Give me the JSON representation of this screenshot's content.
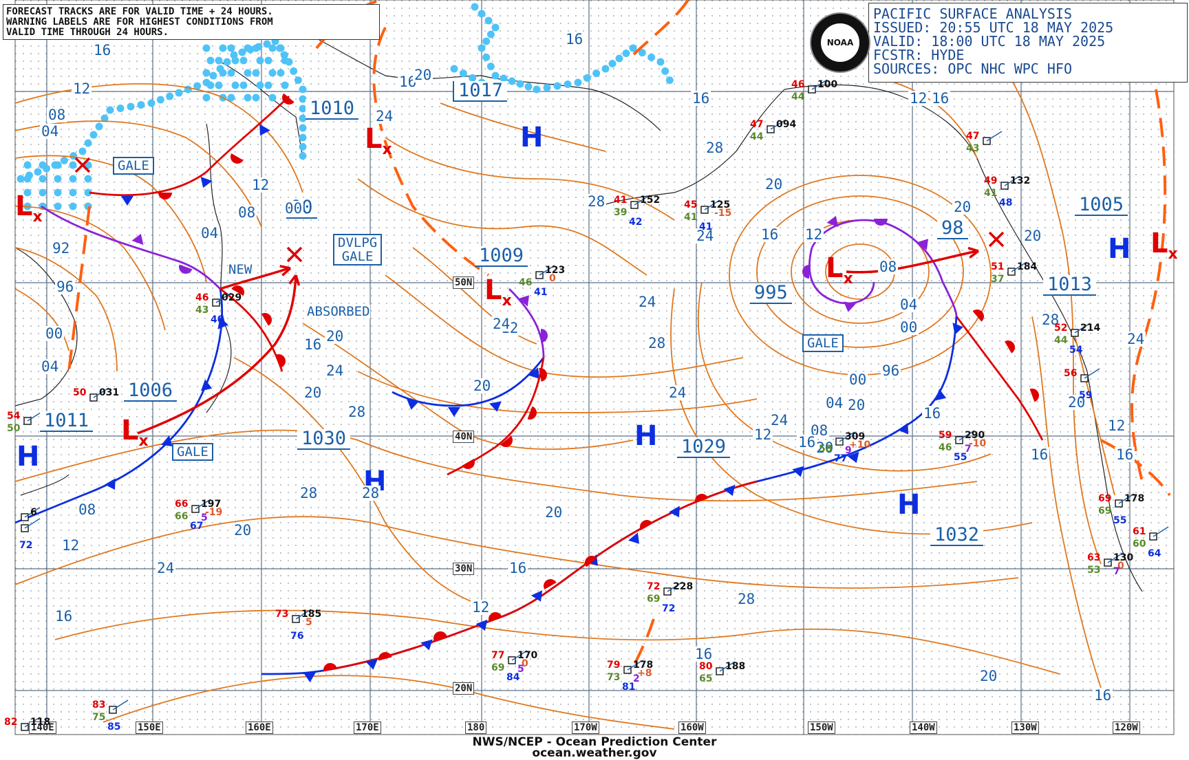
{
  "header": {
    "title": "PACIFIC SURFACE ANALYSIS",
    "issued": "ISSUED: 20:55 UTC 18 MAY 2025",
    "valid": "VALID:  18:00 UTC 18 MAY 2025",
    "forecaster": "FCSTR:  HYDE",
    "sources": "SOURCES: OPC NHC WPC HFO"
  },
  "note": {
    "line1": "FORECAST TRACKS ARE FOR VALID TIME + 24 HOURS.",
    "line2": "WARNING LABELS ARE FOR HIGHEST CONDITIONS FROM",
    "line3": "VALID TIME THROUGH 24 HOURS."
  },
  "logo": {
    "icon": "noaa-logo",
    "text": "NOAA"
  },
  "footer": {
    "line1": "NWS/NCEP - Ocean Prediction Center",
    "line2": "ocean.weather.gov"
  },
  "lat_labels": [
    "50N",
    "40N",
    "30N",
    "20N"
  ],
  "lon_labels": [
    "140E",
    "150E",
    "160E",
    "170E",
    "180",
    "170W",
    "160W",
    "150W",
    "140W",
    "130W",
    "120W"
  ],
  "pressure_centers": [
    {
      "type": "H",
      "value": "1017"
    },
    {
      "type": "L",
      "value": "1010"
    },
    {
      "type": "L",
      "value": "00"
    },
    {
      "type": "L",
      "value": "1009"
    },
    {
      "type": "L",
      "value": "995"
    },
    {
      "type": "L",
      "value": "98"
    },
    {
      "type": "L",
      "value": "1006"
    },
    {
      "type": "H",
      "value": "1011"
    },
    {
      "type": "H",
      "value": "1030"
    },
    {
      "type": "H",
      "value": "1029"
    },
    {
      "type": "H",
      "value": "1032"
    },
    {
      "type": "H",
      "value": "1005"
    },
    {
      "type": "L",
      "value": "1013"
    }
  ],
  "warnings": {
    "gale": "GALE",
    "dvlpg_gale_1": "DVLPG",
    "dvlpg_gale_2": "GALE",
    "new": "NEW",
    "absorbed": "ABSORBED"
  },
  "isobar_labels": [
    "16",
    "12",
    "08",
    "04",
    "92",
    "96",
    "00",
    "04",
    "08",
    "12",
    "12",
    "08",
    "04",
    "00",
    "16",
    "20",
    "24",
    "28",
    "20",
    "16",
    "12",
    "20",
    "24",
    "28",
    "28",
    "24",
    "20",
    "16",
    "16",
    "20",
    "24",
    "28",
    "28",
    "24",
    "20",
    "16",
    "12",
    "08",
    "04",
    "00",
    "96",
    "00",
    "04",
    "08",
    "12",
    "16",
    "20",
    "24",
    "28",
    "24",
    "20",
    "16",
    "12",
    "16",
    "20",
    "24",
    "28",
    "16",
    "16",
    "20",
    "20",
    "24",
    "28",
    "12",
    "16",
    "20",
    "16",
    "12",
    "16",
    "20",
    "16"
  ],
  "observations": [
    {
      "t": "46",
      "s": "100",
      "d": "44"
    },
    {
      "t": "47",
      "s": "094",
      "d": "44"
    },
    {
      "t": "41",
      "s": "152",
      "d": "39",
      "v": "42"
    },
    {
      "t": "45",
      "s": "125",
      "d": "41",
      "v": "41",
      "p": "-15"
    },
    {
      "t": "47",
      "s": "",
      "d": "43"
    },
    {
      "t": "49",
      "s": "132",
      "d": "41",
      "v": "48"
    },
    {
      "t": "46",
      "s": "029",
      "d": "43",
      "v": "40"
    },
    {
      "t": "50",
      "s": "031"
    },
    {
      "t": "54",
      "s": "",
      "d": "50"
    },
    {
      "t": "",
      "s": "123",
      "d": "46",
      "v": "41",
      "p": "0"
    },
    {
      "t": "51",
      "s": "184",
      "d": "37"
    },
    {
      "t": "52",
      "s": "214",
      "d": "44",
      "v": "54"
    },
    {
      "t": "56",
      "s": "",
      "v": "59"
    },
    {
      "t": "",
      "s": "309",
      "d": "58",
      "v": "77",
      "p": "+10",
      "w": "9"
    },
    {
      "t": "59",
      "s": "290",
      "d": "46",
      "v": "55",
      "p": "-10",
      "w": "7"
    },
    {
      "t": "66",
      "s": "197",
      "d": "66",
      "v": "67",
      "p": "-19",
      "w": "5"
    },
    {
      "t": "69",
      "s": "178",
      "d": "69",
      "v": "55"
    },
    {
      "t": "63",
      "s": "130",
      "d": "53",
      "p": "0",
      "w": "7"
    },
    {
      "t": "61",
      "s": "",
      "d": "60",
      "v": "64"
    },
    {
      "t": "72",
      "s": "228",
      "d": "69",
      "v": "72"
    },
    {
      "t": "73",
      "s": "185",
      "v": "76",
      "p": "5"
    },
    {
      "t": "77",
      "s": "170",
      "d": "69",
      "v": "84",
      "p": "0",
      "w": "5"
    },
    {
      "t": "79",
      "s": "178",
      "d": "73",
      "v": "81",
      "p": "+8",
      "w": "2"
    },
    {
      "t": "80",
      "s": "188",
      "d": "65"
    },
    {
      "t": "83",
      "s": "",
      "d": "75",
      "v": "85"
    },
    {
      "t": "82",
      "s": "118"
    },
    {
      "t": "",
      "s": "",
      "v": "72"
    },
    {
      "t": "",
      "s": "6"
    }
  ],
  "colors": {
    "isobar": "#e0781e",
    "cold_front": "#0c2ee0",
    "warm_front": "#e00000",
    "occluded_front": "#8a22d8",
    "trough": "#ff6010",
    "ice": "#4fc3f7",
    "grid": "#5a6f86",
    "coast": "#222222",
    "label": "#1a5fa8"
  }
}
